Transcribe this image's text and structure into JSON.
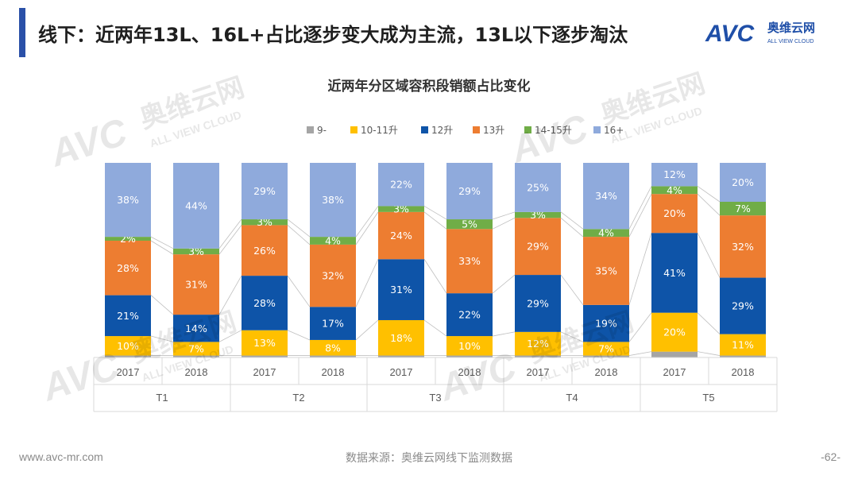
{
  "header": {
    "title": "线下：近两年13L、16L+占比逐步变大成为主流，13L以下逐步淘汰",
    "logo": {
      "mark": "AVC",
      "cn": "奥维云网",
      "en": "ALL VIEW CLOUD"
    }
  },
  "footer": {
    "website": "www.avc-mr.com",
    "source": "数据来源：奥维云网线下监测数据",
    "page": "-62-"
  },
  "watermark": {
    "cn": "奥维云网",
    "en": "ALL VIEW CLOUD",
    "mark": "AVC"
  },
  "colors": {
    "9-": "#a5a5a5",
    "10-11升": "#ffc000",
    "12升": "#0e54a8",
    "13升": "#ed7d31",
    "14-15升": "#70ad47",
    "16+": "#8faadc"
  },
  "chart_data": {
    "type": "bar",
    "stacked": true,
    "percent": true,
    "title": "近两年分区域容积段销额占比变化",
    "legend_position": "top",
    "ylim": [
      0,
      100
    ],
    "groups": [
      "T1",
      "T2",
      "T3",
      "T4",
      "T5"
    ],
    "categories": [
      "2017",
      "2018",
      "2017",
      "2018",
      "2017",
      "2018",
      "2017",
      "2018",
      "2017",
      "2018"
    ],
    "series": [
      {
        "name": "9-",
        "values": [
          1,
          1,
          1,
          1,
          1,
          1,
          1,
          1,
          3,
          1
        ],
        "labels": [
          "",
          "",
          "",
          "",
          "",
          "",
          "",
          "",
          "",
          ""
        ]
      },
      {
        "name": "10-11升",
        "values": [
          10,
          7,
          13,
          8,
          18,
          10,
          12,
          7,
          20,
          11
        ],
        "labels": [
          "10%",
          "7%",
          "13%",
          "8%",
          "18%",
          "10%",
          "12%",
          "7%",
          "20%",
          "11%"
        ]
      },
      {
        "name": "12升",
        "values": [
          21,
          14,
          28,
          17,
          31,
          22,
          29,
          19,
          41,
          29
        ],
        "labels": [
          "21%",
          "14%",
          "28%",
          "17%",
          "31%",
          "22%",
          "29%",
          "19%",
          "41%",
          "29%"
        ]
      },
      {
        "name": "13升",
        "values": [
          28,
          31,
          26,
          32,
          24,
          33,
          29,
          35,
          20,
          32
        ],
        "labels": [
          "28%",
          "31%",
          "26%",
          "32%",
          "24%",
          "33%",
          "29%",
          "35%",
          "20%",
          "32%"
        ]
      },
      {
        "name": "14-15升",
        "values": [
          2,
          3,
          3,
          4,
          3,
          5,
          3,
          4,
          4,
          7
        ],
        "labels": [
          "2%",
          "3%",
          "3%",
          "4%",
          "3%",
          "5%",
          "3%",
          "4%",
          "4%",
          "7%"
        ]
      },
      {
        "name": "16+",
        "values": [
          38,
          44,
          29,
          38,
          22,
          29,
          25,
          34,
          12,
          20
        ],
        "labels": [
          "38%",
          "44%",
          "29%",
          "38%",
          "22%",
          "29%",
          "25%",
          "34%",
          "12%",
          "20%"
        ]
      }
    ]
  }
}
